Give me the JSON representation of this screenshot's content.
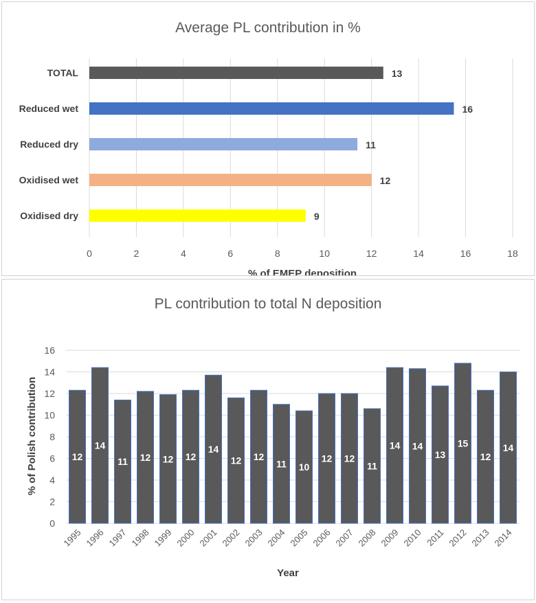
{
  "chart_data": [
    {
      "type": "bar",
      "orientation": "horizontal",
      "title": "Average PL contribution in %",
      "xlabel": "% of EMEP deposition",
      "ylabel": "",
      "xlim": [
        0,
        18
      ],
      "xticks": [
        0,
        2,
        4,
        6,
        8,
        10,
        12,
        14,
        16,
        18
      ],
      "grid": true,
      "categories": [
        "TOTAL",
        "Reduced wet",
        "Reduced dry",
        "Oxidised wet",
        "Oxidised dry"
      ],
      "values": [
        12.5,
        15.5,
        11.4,
        12.0,
        9.2
      ],
      "data_labels": [
        "13",
        "16",
        "11",
        "12",
        "9"
      ],
      "colors": [
        "#595959",
        "#4472c4",
        "#8faadc",
        "#f4b183",
        "#ffff00"
      ]
    },
    {
      "type": "bar",
      "title": "PL contribution to total N deposition",
      "xlabel": "Year",
      "ylabel": "% of Polish contribution",
      "ylim": [
        0,
        16
      ],
      "yticks": [
        0,
        2,
        4,
        6,
        8,
        10,
        12,
        14,
        16
      ],
      "grid": true,
      "categories": [
        "1995",
        "1996",
        "1997",
        "1998",
        "1999",
        "2000",
        "2001",
        "2002",
        "2003",
        "2004",
        "2005",
        "2006",
        "2007",
        "2008",
        "2009",
        "2010",
        "2011",
        "2012",
        "2013",
        "2014"
      ],
      "values": [
        12.3,
        14.4,
        11.4,
        12.2,
        11.9,
        12.3,
        13.7,
        11.6,
        12.3,
        11.0,
        10.4,
        12.0,
        12.0,
        10.6,
        14.4,
        14.3,
        12.7,
        14.8,
        12.3,
        14.0
      ],
      "data_labels": [
        "12",
        "14",
        "11",
        "12",
        "12",
        "12",
        "14",
        "12",
        "12",
        "11",
        "10",
        "12",
        "12",
        "11",
        "14",
        "14",
        "13",
        "15",
        "12",
        "14"
      ],
      "bar_color": "#595959",
      "bar_edge_color": "#4472c4"
    }
  ]
}
